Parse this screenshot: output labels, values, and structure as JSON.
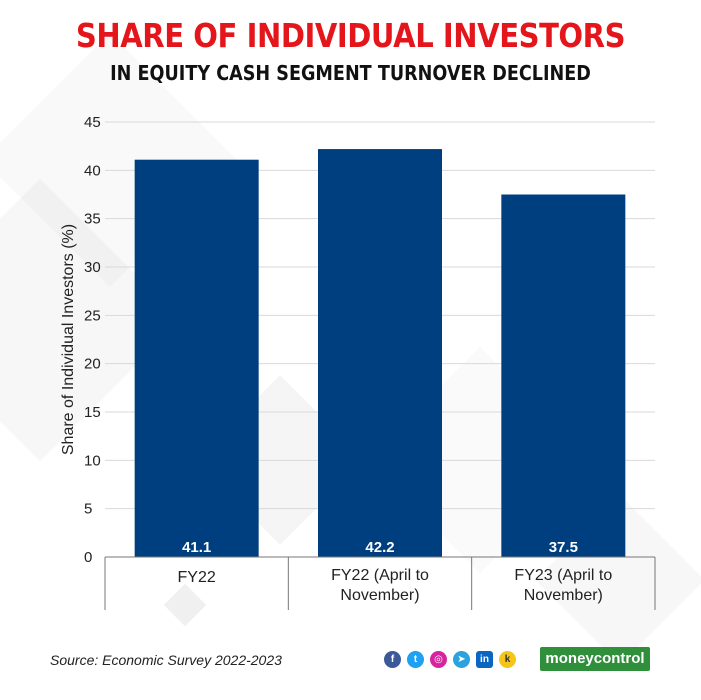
{
  "header": {
    "title": "SHARE OF INDIVIDUAL INVESTORS",
    "subtitle": "IN EQUITY CASH SEGMENT TURNOVER DECLINED"
  },
  "chart_data": {
    "type": "bar",
    "title": "SHARE OF INDIVIDUAL INVESTORS",
    "subtitle": "IN EQUITY CASH SEGMENT TURNOVER DECLINED",
    "categories": [
      [
        "FY22"
      ],
      [
        "FY22 (April to",
        "November)"
      ],
      [
        "FY23 (April to",
        "November)"
      ]
    ],
    "values": [
      41.1,
      42.2,
      37.5
    ],
    "data_labels": [
      "41.1",
      "42.2",
      "37.5"
    ],
    "xlabel": "",
    "ylabel": "Share of Individual Investors (%)",
    "ylim": [
      0,
      45
    ],
    "yticks": [
      0,
      5,
      10,
      15,
      20,
      25,
      30,
      35,
      40,
      45
    ],
    "grid": true,
    "bar_color": "#003f7f",
    "label_color": "#ffffff"
  },
  "footer": {
    "source": "Source: Economic Survey 2022-2023",
    "brand": "moneycontrol",
    "social_icons": [
      "facebook-icon",
      "twitter-icon",
      "instagram-icon",
      "telegram-icon",
      "linkedin-icon",
      "koo-icon"
    ]
  },
  "colors": {
    "title": "#e4151b",
    "bar": "#003f7f",
    "grid": "#d9d9d9",
    "brand": "#2f8f3a"
  }
}
